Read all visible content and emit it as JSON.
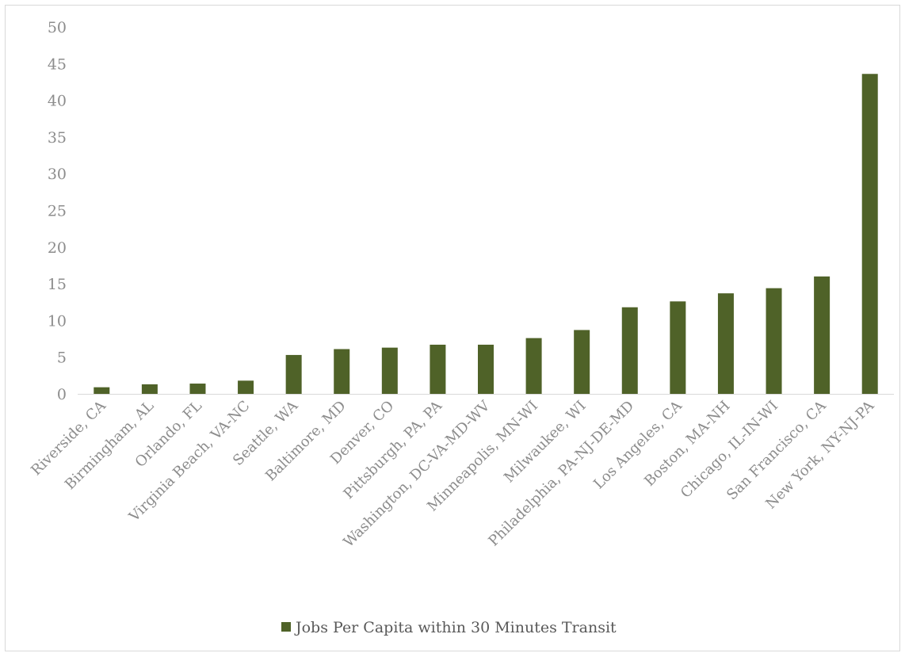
{
  "chart_data": {
    "type": "bar",
    "categories": [
      "Riverside, CA",
      "Birmingham, AL",
      "Orlando, FL",
      "Virginia Beach, VA-NC",
      "Seattle, WA",
      "Baltimore, MD",
      "Denver, CO",
      "Pittsburgh, PA, PA",
      "Washington, DC-VA-MD-WV",
      "Minneapolis, MN-WI",
      "Milwaukee, WI",
      "Philadelphia, PA-NJ-DE-MD",
      "Los Angeles, CA",
      "Boston, MA-NH",
      "Chicago, IL-IN-WI",
      "San Francisco, CA",
      "New York, NY-NJ-PA"
    ],
    "series": [
      {
        "name": "Jobs Per Capita within 30 Minutes Transit",
        "color": "#4f6228",
        "values": [
          0.9,
          1.3,
          1.4,
          1.8,
          5.3,
          6.1,
          6.3,
          6.7,
          6.7,
          7.6,
          8.7,
          11.8,
          12.6,
          13.7,
          14.4,
          16.0,
          43.6
        ]
      }
    ],
    "yticks": [
      "0",
      "5",
      "10",
      "15",
      "20",
      "25",
      "30",
      "35",
      "40",
      "45",
      "50"
    ],
    "ylim": [
      0,
      50
    ],
    "grid": false,
    "legend": "bottom"
  }
}
